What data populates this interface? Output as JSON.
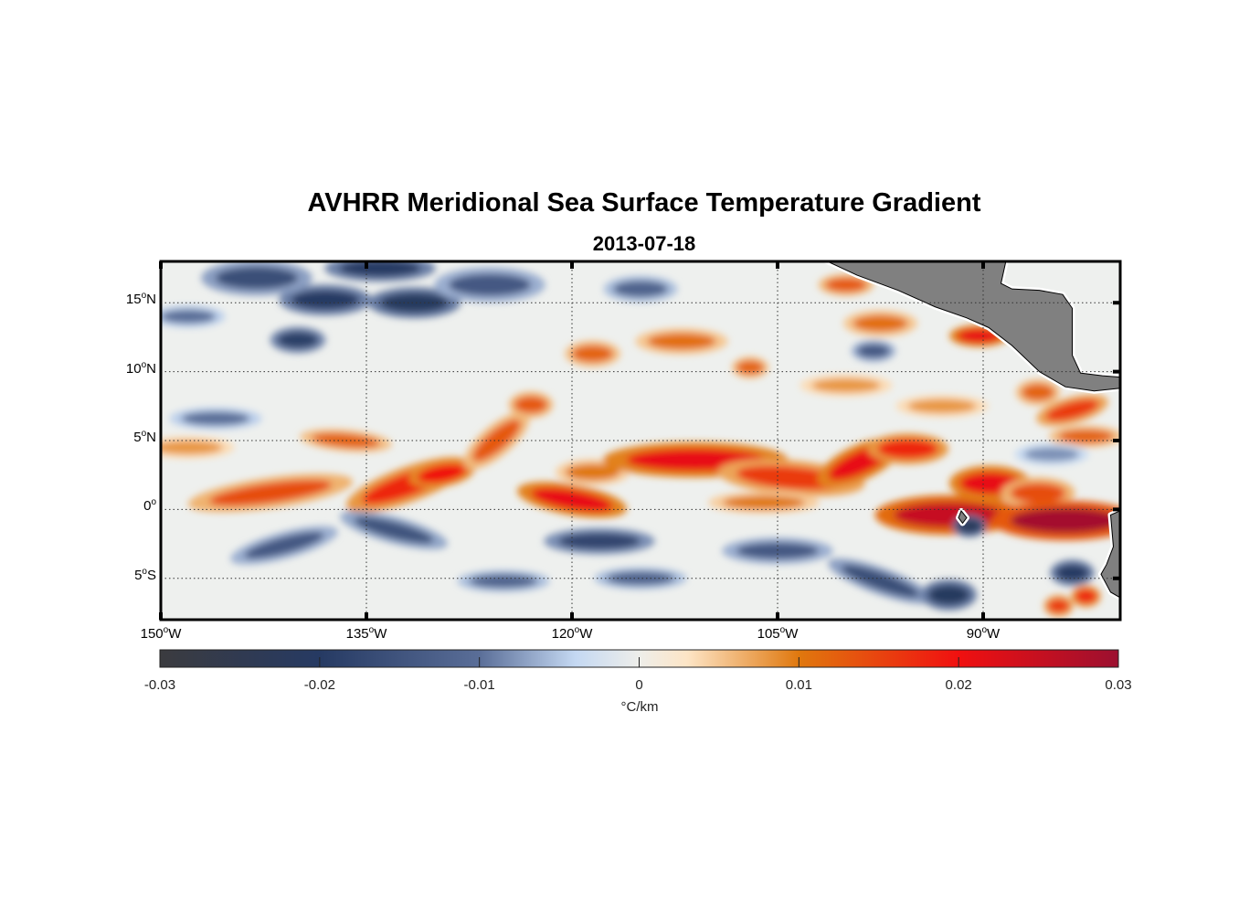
{
  "title": "AVHRR Meridional Sea Surface Temperature Gradient",
  "subtitle": "2013-07-18",
  "chart_data": {
    "type": "heatmap",
    "title": "AVHRR Meridional Sea Surface Temperature Gradient",
    "subtitle": "2013-07-18",
    "lon_range": [
      -150,
      -80
    ],
    "lat_range": [
      -8,
      18
    ],
    "x_ticks": [
      {
        "value": -150,
        "label": "150",
        "suffix": "W"
      },
      {
        "value": -135,
        "label": "135",
        "suffix": "W"
      },
      {
        "value": -120,
        "label": "120",
        "suffix": "W"
      },
      {
        "value": -105,
        "label": "105",
        "suffix": "W"
      },
      {
        "value": -90,
        "label": "90",
        "suffix": "W"
      }
    ],
    "y_ticks": [
      {
        "value": 15,
        "label": "15",
        "suffix": "N"
      },
      {
        "value": 10,
        "label": "10",
        "suffix": "N"
      },
      {
        "value": 5,
        "label": "5",
        "suffix": "N"
      },
      {
        "value": 0,
        "label": "0",
        "suffix": ""
      },
      {
        "value": -5,
        "label": "5",
        "suffix": "S"
      }
    ],
    "grid": true,
    "colorbar": {
      "range": [
        -0.03,
        0.03
      ],
      "ticks": [
        "-0.03",
        "-0.02",
        "-0.01",
        "0",
        "0.01",
        "0.02",
        "0.03"
      ],
      "label": "°C/km",
      "placement": "bottom",
      "stops": [
        {
          "v": -0.03,
          "c": "#3b3b3f"
        },
        {
          "v": -0.02,
          "c": "#263a63"
        },
        {
          "v": -0.01,
          "c": "#5a6e98"
        },
        {
          "v": -0.004,
          "c": "#c4d8f2"
        },
        {
          "v": 0,
          "c": "#eeeeea"
        },
        {
          "v": 0.003,
          "c": "#fde5c6"
        },
        {
          "v": 0.01,
          "c": "#e0780e"
        },
        {
          "v": 0.02,
          "c": "#f01010"
        },
        {
          "v": 0.03,
          "c": "#9c1030"
        }
      ]
    },
    "features": [
      {
        "lon": -142,
        "lat": 1.2,
        "w": 4.5,
        "h": 0.7,
        "v": 0.014,
        "rot": -8
      },
      {
        "lon": -132,
        "lat": 1.8,
        "w": 3.5,
        "h": 0.8,
        "v": 0.018,
        "rot": -20
      },
      {
        "lon": -129.5,
        "lat": 2.6,
        "w": 1.8,
        "h": 0.6,
        "v": 0.02,
        "rot": -10
      },
      {
        "lon": -125.5,
        "lat": 5,
        "w": 2.2,
        "h": 0.7,
        "v": 0.013,
        "rot": -40
      },
      {
        "lon": -123,
        "lat": 7.6,
        "w": 1.2,
        "h": 0.6,
        "v": 0.013,
        "rot": 0
      },
      {
        "lon": -136.5,
        "lat": 5,
        "w": 2.5,
        "h": 0.5,
        "v": 0.012,
        "rot": 5
      },
      {
        "lon": -148,
        "lat": 4.5,
        "w": 2.5,
        "h": 0.5,
        "v": 0.008,
        "rot": 0
      },
      {
        "lon": -120,
        "lat": 0.7,
        "w": 3,
        "h": 0.7,
        "v": 0.021,
        "rot": 10
      },
      {
        "lon": -118.5,
        "lat": 2.7,
        "w": 2,
        "h": 0.6,
        "v": 0.01,
        "rot": 0
      },
      {
        "lon": -111,
        "lat": 3.6,
        "w": 5,
        "h": 0.8,
        "v": 0.021,
        "rot": 0
      },
      {
        "lon": -104,
        "lat": 2.3,
        "w": 4,
        "h": 0.8,
        "v": 0.016,
        "rot": 5
      },
      {
        "lon": -99,
        "lat": 3.4,
        "w": 2.5,
        "h": 0.8,
        "v": 0.021,
        "rot": -25
      },
      {
        "lon": -95.5,
        "lat": 4.4,
        "w": 2.2,
        "h": 0.7,
        "v": 0.018,
        "rot": 0
      },
      {
        "lon": -106,
        "lat": 0.5,
        "w": 3,
        "h": 0.5,
        "v": 0.01,
        "rot": 0
      },
      {
        "lon": -92.5,
        "lat": -0.4,
        "w": 4,
        "h": 0.9,
        "v": 0.025,
        "rot": 0
      },
      {
        "lon": -89.5,
        "lat": 1.9,
        "w": 2.2,
        "h": 0.8,
        "v": 0.021,
        "rot": 0
      },
      {
        "lon": -86,
        "lat": 1.2,
        "w": 2,
        "h": 0.7,
        "v": 0.014,
        "rot": 0
      },
      {
        "lon": -84,
        "lat": -0.8,
        "w": 4,
        "h": 0.9,
        "v": 0.029,
        "rot": 0
      },
      {
        "lon": -112,
        "lat": 12.2,
        "w": 2.5,
        "h": 0.6,
        "v": 0.011,
        "rot": 0
      },
      {
        "lon": -118.5,
        "lat": 11.3,
        "w": 1.5,
        "h": 0.6,
        "v": 0.012,
        "rot": 0
      },
      {
        "lon": -107,
        "lat": 10.3,
        "w": 1,
        "h": 0.5,
        "v": 0.012,
        "rot": 0
      },
      {
        "lon": -100,
        "lat": 16.3,
        "w": 1.5,
        "h": 0.5,
        "v": 0.013,
        "rot": 0
      },
      {
        "lon": -97.5,
        "lat": 13.5,
        "w": 2,
        "h": 0.6,
        "v": 0.011,
        "rot": 0
      },
      {
        "lon": -90.3,
        "lat": 12.6,
        "w": 1.6,
        "h": 0.5,
        "v": 0.021,
        "rot": 0
      },
      {
        "lon": -83.5,
        "lat": 7.2,
        "w": 2,
        "h": 0.6,
        "v": 0.016,
        "rot": -15
      },
      {
        "lon": -86,
        "lat": 8.5,
        "w": 1.2,
        "h": 0.6,
        "v": 0.012,
        "rot": 0
      },
      {
        "lon": -82.5,
        "lat": 5.3,
        "w": 2,
        "h": 0.5,
        "v": 0.012,
        "rot": 0
      },
      {
        "lon": -100,
        "lat": 9,
        "w": 2.5,
        "h": 0.5,
        "v": 0.008,
        "rot": 0
      },
      {
        "lon": -93,
        "lat": 7.5,
        "w": 2.5,
        "h": 0.5,
        "v": 0.008,
        "rot": 0
      },
      {
        "lon": -82.5,
        "lat": -6.3,
        "w": 0.8,
        "h": 0.5,
        "v": 0.018,
        "rot": 0
      },
      {
        "lon": -84.5,
        "lat": -7,
        "w": 0.8,
        "h": 0.5,
        "v": 0.016,
        "rot": 0
      },
      {
        "lon": -138,
        "lat": 15.2,
        "w": 2.5,
        "h": 0.7,
        "v": -0.02,
        "rot": 0
      },
      {
        "lon": -131.5,
        "lat": 15,
        "w": 2.5,
        "h": 0.7,
        "v": -0.021,
        "rot": 0
      },
      {
        "lon": -143,
        "lat": 16.8,
        "w": 3,
        "h": 0.8,
        "v": -0.016,
        "rot": 0
      },
      {
        "lon": -126,
        "lat": 16.3,
        "w": 3,
        "h": 0.8,
        "v": -0.014,
        "rot": 0
      },
      {
        "lon": -134,
        "lat": 17.5,
        "w": 3,
        "h": 0.6,
        "v": -0.02,
        "rot": 0
      },
      {
        "lon": -140,
        "lat": 12.3,
        "w": 1.5,
        "h": 0.6,
        "v": -0.019,
        "rot": 0
      },
      {
        "lon": -115,
        "lat": 16,
        "w": 2,
        "h": 0.6,
        "v": -0.012,
        "rot": 0
      },
      {
        "lon": -146,
        "lat": 6.6,
        "w": 2.5,
        "h": 0.5,
        "v": -0.01,
        "rot": 0
      },
      {
        "lon": -133,
        "lat": -1.5,
        "w": 3,
        "h": 0.6,
        "v": -0.015,
        "rot": 15
      },
      {
        "lon": -141,
        "lat": -2.6,
        "w": 3,
        "h": 0.6,
        "v": -0.014,
        "rot": -15
      },
      {
        "lon": -118,
        "lat": -2.3,
        "w": 3,
        "h": 0.6,
        "v": -0.018,
        "rot": 0
      },
      {
        "lon": -105,
        "lat": -3,
        "w": 3,
        "h": 0.6,
        "v": -0.014,
        "rot": 0
      },
      {
        "lon": -97.5,
        "lat": -5.2,
        "w": 3,
        "h": 0.6,
        "v": -0.016,
        "rot": 20
      },
      {
        "lon": -92.5,
        "lat": -6.2,
        "w": 1.5,
        "h": 0.7,
        "v": -0.021,
        "rot": 0
      },
      {
        "lon": -91,
        "lat": -1.2,
        "w": 0.9,
        "h": 0.5,
        "v": -0.022,
        "rot": 0
      },
      {
        "lon": -83.5,
        "lat": -4.6,
        "w": 1.2,
        "h": 0.6,
        "v": -0.02,
        "rot": 0
      },
      {
        "lon": -115,
        "lat": -5,
        "w": 2.5,
        "h": 0.5,
        "v": -0.012,
        "rot": 0
      },
      {
        "lon": -125,
        "lat": -5.2,
        "w": 2.5,
        "h": 0.5,
        "v": -0.012,
        "rot": 0
      },
      {
        "lon": -98,
        "lat": 11.5,
        "w": 1.2,
        "h": 0.5,
        "v": -0.014,
        "rot": 0
      },
      {
        "lon": -85,
        "lat": 4,
        "w": 2,
        "h": 0.5,
        "v": -0.008,
        "rot": 0
      },
      {
        "lon": -148,
        "lat": 14,
        "w": 2,
        "h": 0.5,
        "v": -0.01,
        "rot": 0
      }
    ],
    "land": [
      [
        [
          -101.8,
          18.2
        ],
        [
          -99.2,
          17
        ],
        [
          -96.2,
          15.9
        ],
        [
          -93.5,
          14.7
        ],
        [
          -91.2,
          13.9
        ],
        [
          -89.6,
          13.2
        ],
        [
          -87.9,
          11.9
        ],
        [
          -85.9,
          10
        ],
        [
          -84,
          8.9
        ],
        [
          -81.9,
          8.6
        ],
        [
          -80,
          8.8
        ],
        [
          -80,
          9.6
        ],
        [
          -81.3,
          9.7
        ],
        [
          -82.9,
          9.9
        ],
        [
          -83.5,
          11.2
        ],
        [
          -83.5,
          14.6
        ],
        [
          -84.2,
          15.6
        ],
        [
          -85.9,
          15.9
        ],
        [
          -87.9,
          16
        ],
        [
          -88.7,
          16.4
        ],
        [
          -88.3,
          18.2
        ]
      ],
      [
        [
          -80,
          -0.1
        ],
        [
          -80.7,
          -0.4
        ],
        [
          -80.5,
          -2.7
        ],
        [
          -81,
          -4
        ],
        [
          -81.4,
          -4.7
        ],
        [
          -80.7,
          -6
        ],
        [
          -80,
          -6.4
        ]
      ],
      [
        [
          -91.6,
          -0.1
        ],
        [
          -91.2,
          -0.6
        ],
        [
          -91.5,
          -1
        ],
        [
          -91.8,
          -0.6
        ]
      ]
    ]
  }
}
